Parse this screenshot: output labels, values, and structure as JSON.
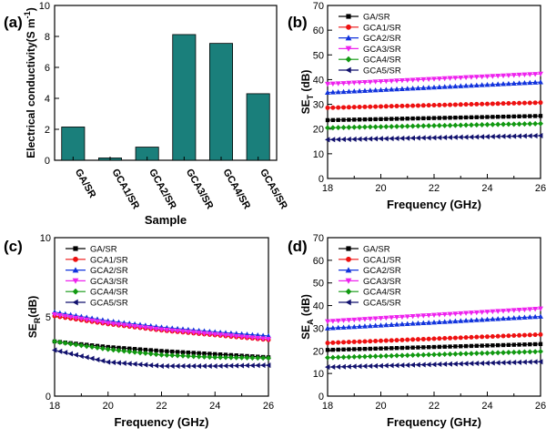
{
  "figure": {
    "panel_labels": [
      "(a)",
      "(b)",
      "(c)",
      "(d)"
    ]
  },
  "colors": {
    "bar_fill": "#1a7f7b",
    "series": [
      "#000000",
      "#ee1111",
      "#1133dd",
      "#ee22ee",
      "#119911",
      "#11116e"
    ]
  },
  "chart_data": [
    {
      "panel": "(a)",
      "type": "bar",
      "title": "",
      "xlabel": "Sample",
      "ylabel": "Electrical conductivity(S m⁻¹)",
      "ylabel_main": "Electrical conductivity(S m",
      "ylabel_sup": "-1",
      "ylabel_tail": ")",
      "categories": [
        "GA/SR",
        "GCA1/SR",
        "GCA2/SR",
        "GCA3/SR",
        "GCA4/SR",
        "GCA5/SR"
      ],
      "values": [
        2.15,
        0.15,
        0.85,
        8.12,
        7.55,
        4.3
      ],
      "ylim": [
        0,
        10
      ],
      "yticks": [
        0,
        2,
        4,
        6,
        8,
        10
      ]
    },
    {
      "panel": "(b)",
      "type": "line",
      "xlabel": "Frequency (GHz)",
      "ylabel": "SET (dB)",
      "ylabel_main": "SE",
      "ylabel_sub": "T",
      "ylabel_tail": " (dB)",
      "xlim": [
        18,
        26
      ],
      "ylim": [
        0,
        70
      ],
      "xticks": [
        18,
        20,
        22,
        24,
        26
      ],
      "yticks": [
        0,
        10,
        20,
        30,
        40,
        50,
        60,
        70
      ],
      "legend_position": "top-left",
      "series": [
        {
          "name": "GA/SR",
          "start": 23.6,
          "end": 25.3
        },
        {
          "name": "GCA1/SR",
          "start": 28.6,
          "end": 30.7
        },
        {
          "name": "GCA2/SR",
          "start": 34.8,
          "end": 39.0
        },
        {
          "name": "GCA3/SR",
          "start": 38.2,
          "end": 42.3
        },
        {
          "name": "GCA4/SR",
          "start": 20.5,
          "end": 22.2
        },
        {
          "name": "GCA5/SR",
          "start": 15.7,
          "end": 17.3
        }
      ]
    },
    {
      "panel": "(c)",
      "type": "line",
      "xlabel": "Frequency (GHz)",
      "ylabel": "SER(dB)",
      "ylabel_main": "SE",
      "ylabel_sub": "R",
      "ylabel_tail": "(dB)",
      "xlim": [
        18,
        26
      ],
      "ylim": [
        0,
        10
      ],
      "xticks": [
        18,
        20,
        22,
        24,
        26
      ],
      "yticks": [
        0,
        5,
        10
      ],
      "legend_position": "top-left",
      "series": [
        {
          "name": "GA/SR",
          "values": [
            3.45,
            3.1,
            2.85,
            2.65,
            2.45
          ]
        },
        {
          "name": "GCA1/SR",
          "values": [
            5.05,
            4.55,
            4.15,
            3.85,
            3.55
          ]
        },
        {
          "name": "GCA2/SR",
          "values": [
            5.3,
            4.75,
            4.35,
            4.05,
            3.8
          ]
        },
        {
          "name": "GCA3/SR",
          "values": [
            5.15,
            4.6,
            4.2,
            3.9,
            3.6
          ]
        },
        {
          "name": "GCA4/SR",
          "values": [
            3.45,
            2.95,
            2.6,
            2.45,
            2.4
          ]
        },
        {
          "name": "GCA5/SR",
          "values": [
            2.9,
            2.15,
            1.9,
            1.9,
            1.95
          ]
        }
      ]
    },
    {
      "panel": "(d)",
      "type": "line",
      "xlabel": "Frequency (GHz)",
      "ylabel": "SEA (dB)",
      "ylabel_main": "SE",
      "ylabel_sub": "A",
      "ylabel_tail": " (dB)",
      "xlim": [
        18,
        26
      ],
      "ylim": [
        0,
        70
      ],
      "xticks": [
        18,
        20,
        22,
        24,
        26
      ],
      "yticks": [
        0,
        10,
        20,
        30,
        40,
        50,
        60,
        70
      ],
      "legend_position": "top-left",
      "series": [
        {
          "name": "GA/SR",
          "start": 20.4,
          "end": 23.0
        },
        {
          "name": "GCA1/SR",
          "start": 23.5,
          "end": 27.2
        },
        {
          "name": "GCA2/SR",
          "start": 30.0,
          "end": 35.2
        },
        {
          "name": "GCA3/SR",
          "start": 33.0,
          "end": 38.6
        },
        {
          "name": "GCA4/SR",
          "start": 17.0,
          "end": 19.7
        },
        {
          "name": "GCA5/SR",
          "start": 12.8,
          "end": 15.2
        }
      ]
    }
  ]
}
